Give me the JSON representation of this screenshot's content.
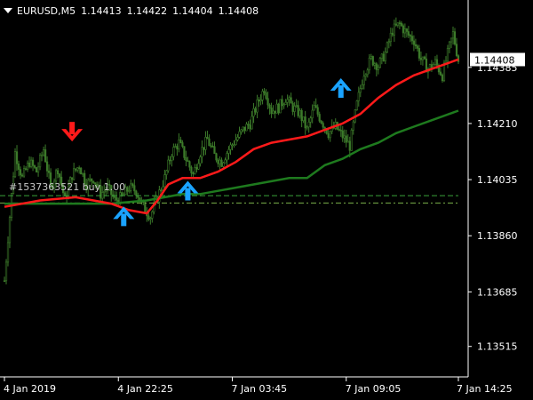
{
  "header": {
    "menu_icon": "triangle-down-icon",
    "symbol": "EURUSD,M5",
    "open": "1.14413",
    "high": "1.14422",
    "low": "1.14404",
    "close": "1.14408"
  },
  "orders_label": "#1537363521 buy 1.00",
  "chart_data": {
    "type": "candlestick",
    "title": "",
    "xlabel": "",
    "ylabel": "",
    "ylim": [
      1.1342,
      1.14595
    ],
    "y_ticks": [
      "1.14385",
      "1.14210",
      "1.14035",
      "1.13860",
      "1.13685",
      "1.13515"
    ],
    "y_tick_values": [
      1.14385,
      1.1421,
      1.14035,
      1.1386,
      1.13685,
      1.13515
    ],
    "x_ticks": [
      "4 Jan 2019",
      "4 Jan 22:25",
      "7 Jan 03:45",
      "7 Jan 09:05",
      "7 Jan 14:25"
    ],
    "x_tick_bars": [
      0,
      64,
      128,
      192,
      255
    ],
    "bars_count": 256,
    "current_price": "1.14408",
    "current_price_value": 1.14408,
    "grid": false,
    "legend": "none",
    "colors": {
      "background": "#000000",
      "candle": "#3c7a2a",
      "fast_ma": "#ff1a1a",
      "slow_ma": "#1e7a1e",
      "buy_arrow": "#1aa3ff",
      "sell_arrow": "#ff1a1a",
      "order_line": "#2a8a2a"
    },
    "close_path": [
      [
        0,
        1.1372
      ],
      [
        3,
        1.1392
      ],
      [
        6,
        1.1412
      ],
      [
        10,
        1.1404
      ],
      [
        14,
        1.1409
      ],
      [
        18,
        1.1406
      ],
      [
        22,
        1.1413
      ],
      [
        26,
        1.1401
      ],
      [
        30,
        1.1407
      ],
      [
        34,
        1.1397
      ],
      [
        38,
        1.1405
      ],
      [
        42,
        1.1408
      ],
      [
        46,
        1.1402
      ],
      [
        50,
        1.1404
      ],
      [
        54,
        1.1399
      ],
      [
        58,
        1.1401
      ],
      [
        62,
        1.1397
      ],
      [
        66,
        1.1398
      ],
      [
        70,
        1.1401
      ],
      [
        74,
        1.14
      ],
      [
        78,
        1.1395
      ],
      [
        82,
        1.1392
      ],
      [
        86,
        1.1398
      ],
      [
        90,
        1.1404
      ],
      [
        94,
        1.1412
      ],
      [
        98,
        1.1415
      ],
      [
        102,
        1.141
      ],
      [
        106,
        1.1405
      ],
      [
        110,
        1.1412
      ],
      [
        114,
        1.1416
      ],
      [
        118,
        1.1411
      ],
      [
        122,
        1.1409
      ],
      [
        126,
        1.1413
      ],
      [
        130,
        1.1416
      ],
      [
        134,
        1.1419
      ],
      [
        138,
        1.1421
      ],
      [
        142,
        1.1427
      ],
      [
        146,
        1.1432
      ],
      [
        150,
        1.1425
      ],
      [
        154,
        1.1426
      ],
      [
        158,
        1.1429
      ],
      [
        162,
        1.1426
      ],
      [
        166,
        1.1424
      ],
      [
        170,
        1.1419
      ],
      [
        174,
        1.1426
      ],
      [
        178,
        1.1422
      ],
      [
        182,
        1.1418
      ],
      [
        186,
        1.142
      ],
      [
        190,
        1.1417
      ],
      [
        194,
        1.1414
      ],
      [
        198,
        1.1427
      ],
      [
        202,
        1.1437
      ],
      [
        206,
        1.1441
      ],
      [
        210,
        1.1439
      ],
      [
        214,
        1.1443
      ],
      [
        218,
        1.145
      ],
      [
        222,
        1.1452
      ],
      [
        226,
        1.1449
      ],
      [
        230,
        1.1447
      ],
      [
        234,
        1.1441
      ],
      [
        238,
        1.1438
      ],
      [
        242,
        1.144
      ],
      [
        246,
        1.1436
      ],
      [
        250,
        1.1445
      ],
      [
        252,
        1.1449
      ],
      [
        255,
        1.14408
      ]
    ],
    "fast_ma": [
      [
        0,
        1.1395
      ],
      [
        20,
        1.1397
      ],
      [
        40,
        1.1398
      ],
      [
        60,
        1.1396
      ],
      [
        70,
        1.1394
      ],
      [
        80,
        1.1393
      ],
      [
        86,
        1.1397
      ],
      [
        92,
        1.1402
      ],
      [
        100,
        1.1404
      ],
      [
        110,
        1.1404
      ],
      [
        120,
        1.1406
      ],
      [
        130,
        1.1409
      ],
      [
        140,
        1.1413
      ],
      [
        150,
        1.1415
      ],
      [
        160,
        1.1416
      ],
      [
        170,
        1.1417
      ],
      [
        180,
        1.1419
      ],
      [
        190,
        1.1421
      ],
      [
        200,
        1.1424
      ],
      [
        210,
        1.1429
      ],
      [
        220,
        1.1433
      ],
      [
        230,
        1.1436
      ],
      [
        240,
        1.1438
      ],
      [
        250,
        1.144
      ],
      [
        255,
        1.1441
      ]
    ],
    "slow_ma": [
      [
        0,
        1.1396
      ],
      [
        20,
        1.1396
      ],
      [
        40,
        1.1396
      ],
      [
        60,
        1.1396
      ],
      [
        80,
        1.1397
      ],
      [
        90,
        1.1398
      ],
      [
        100,
        1.1399
      ],
      [
        110,
        1.1399
      ],
      [
        120,
        1.14
      ],
      [
        130,
        1.1401
      ],
      [
        140,
        1.1402
      ],
      [
        150,
        1.1403
      ],
      [
        160,
        1.1404
      ],
      [
        170,
        1.1404
      ],
      [
        180,
        1.1408
      ],
      [
        190,
        1.141
      ],
      [
        200,
        1.1413
      ],
      [
        210,
        1.1415
      ],
      [
        220,
        1.1418
      ],
      [
        230,
        1.142
      ],
      [
        240,
        1.1422
      ],
      [
        250,
        1.1424
      ],
      [
        255,
        1.1425
      ]
    ],
    "order_levels": [
      1.13985,
      1.13962
    ],
    "signals": [
      {
        "type": "sell",
        "bar": 38,
        "price": 1.14165
      },
      {
        "type": "buy",
        "bar": 67,
        "price": 1.1394
      },
      {
        "type": "buy",
        "bar": 103,
        "price": 1.1402
      },
      {
        "type": "buy",
        "bar": 189,
        "price": 1.1434
      }
    ]
  }
}
